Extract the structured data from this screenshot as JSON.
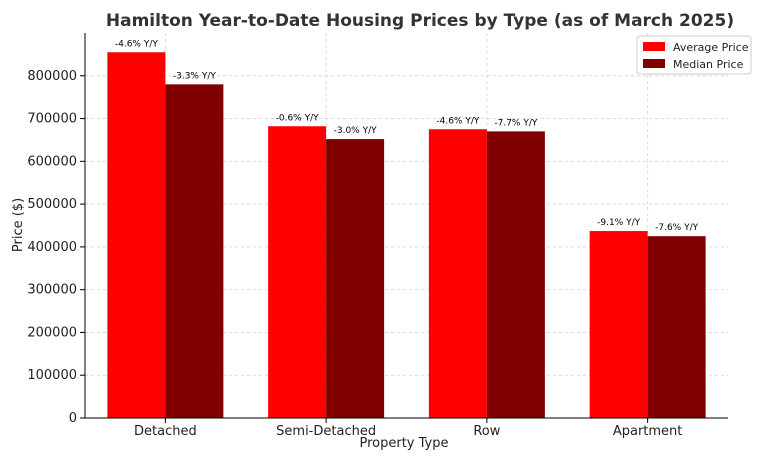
{
  "chart_data": {
    "type": "bar",
    "title": "Hamilton Year-to-Date Housing Prices by Type (as of March 2025)",
    "xlabel": "Property Type",
    "ylabel": "Price ($)",
    "ylim": [
      0,
      900000
    ],
    "yticks": [
      0,
      100000,
      200000,
      300000,
      400000,
      500000,
      600000,
      700000,
      800000
    ],
    "grid": true,
    "legend_position": "top-right",
    "categories": [
      "Detached",
      "Semi-Detached",
      "Row",
      "Apartment"
    ],
    "series": [
      {
        "name": "Average Price",
        "color": "#ff0000",
        "values": [
          855000,
          682000,
          675000,
          437000
        ],
        "labels": [
          "-4.6% Y/Y",
          "-0.6% Y/Y",
          "-4.6% Y/Y",
          "-9.1% Y/Y"
        ]
      },
      {
        "name": "Median Price",
        "color": "#800000",
        "values": [
          780000,
          652000,
          670000,
          425000
        ],
        "labels": [
          "-3.3% Y/Y",
          "-3.0% Y/Y",
          "-7.7% Y/Y",
          "-7.6% Y/Y"
        ]
      }
    ]
  }
}
